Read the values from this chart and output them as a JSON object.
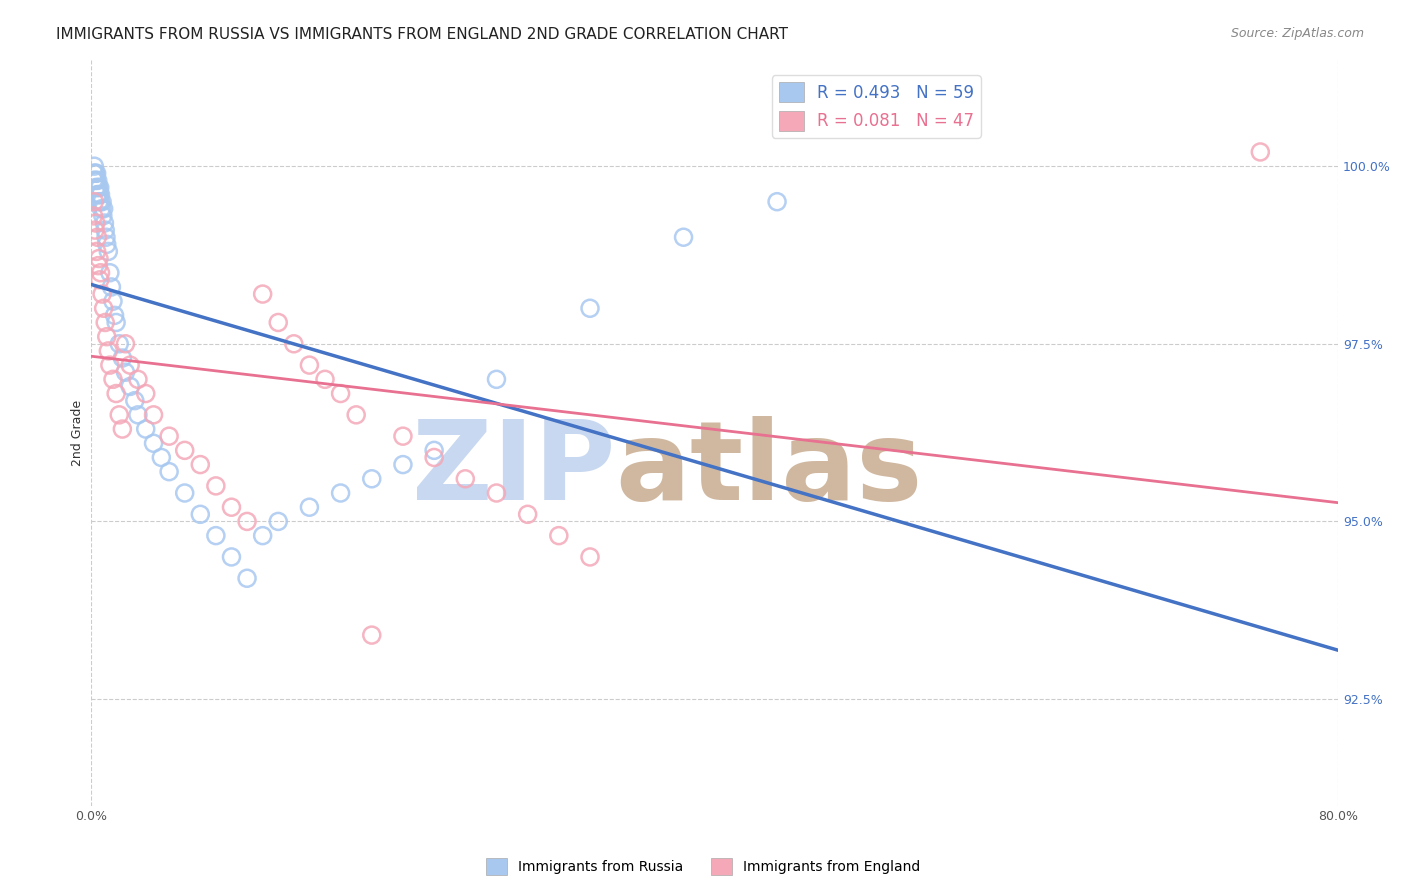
{
  "title": "IMMIGRANTS FROM RUSSIA VS IMMIGRANTS FROM ENGLAND 2ND GRADE CORRELATION CHART",
  "source": "Source: ZipAtlas.com",
  "ylabel": "2nd Grade",
  "xlim": [
    0.0,
    80.0
  ],
  "ylim": [
    91.0,
    101.5
  ],
  "yticks": [
    92.5,
    95.0,
    97.5,
    100.0
  ],
  "xticks_vals": [
    0.0,
    80.0
  ],
  "russia_R": 0.493,
  "russia_N": 59,
  "england_R": 0.081,
  "england_N": 47,
  "russia_color": "#A8C8F0",
  "england_color": "#F4A8B8",
  "russia_line_color": "#4472C4",
  "england_line_color": "#E87090",
  "russia_x": [
    0.15,
    0.18,
    0.2,
    0.22,
    0.25,
    0.28,
    0.3,
    0.32,
    0.35,
    0.38,
    0.4,
    0.42,
    0.45,
    0.48,
    0.5,
    0.52,
    0.55,
    0.58,
    0.6,
    0.65,
    0.7,
    0.75,
    0.8,
    0.85,
    0.9,
    0.95,
    1.0,
    1.1,
    1.2,
    1.3,
    1.4,
    1.5,
    1.6,
    1.8,
    2.0,
    2.2,
    2.5,
    2.8,
    3.0,
    3.5,
    4.0,
    4.5,
    5.0,
    6.0,
    7.0,
    8.0,
    9.0,
    10.0,
    11.0,
    12.0,
    14.0,
    16.0,
    18.0,
    20.0,
    22.0,
    26.0,
    32.0,
    38.0,
    44.0
  ],
  "russia_y": [
    99.8,
    99.9,
    100.0,
    99.9,
    99.8,
    99.9,
    99.7,
    99.8,
    99.9,
    99.6,
    99.7,
    99.8,
    99.6,
    99.7,
    99.5,
    99.6,
    99.7,
    99.5,
    99.6,
    99.4,
    99.5,
    99.3,
    99.4,
    99.2,
    99.1,
    99.0,
    98.9,
    98.8,
    98.5,
    98.3,
    98.1,
    97.9,
    97.8,
    97.5,
    97.3,
    97.1,
    96.9,
    96.7,
    96.5,
    96.3,
    96.1,
    95.9,
    95.7,
    95.4,
    95.1,
    94.8,
    94.5,
    94.2,
    94.8,
    95.0,
    95.2,
    95.4,
    95.6,
    95.8,
    96.0,
    97.0,
    98.0,
    99.0,
    99.5
  ],
  "england_x": [
    0.15,
    0.2,
    0.25,
    0.3,
    0.35,
    0.4,
    0.45,
    0.5,
    0.55,
    0.6,
    0.7,
    0.8,
    0.9,
    1.0,
    1.1,
    1.2,
    1.4,
    1.6,
    1.8,
    2.0,
    2.2,
    2.5,
    3.0,
    3.5,
    4.0,
    5.0,
    6.0,
    7.0,
    8.0,
    9.0,
    10.0,
    11.0,
    12.0,
    13.0,
    14.0,
    15.0,
    16.0,
    17.0,
    18.0,
    20.0,
    22.0,
    24.0,
    26.0,
    28.0,
    30.0,
    32.0,
    75.0
  ],
  "england_y": [
    99.3,
    99.5,
    99.1,
    99.2,
    98.8,
    99.0,
    98.6,
    98.7,
    98.4,
    98.5,
    98.2,
    98.0,
    97.8,
    97.6,
    97.4,
    97.2,
    97.0,
    96.8,
    96.5,
    96.3,
    97.5,
    97.2,
    97.0,
    96.8,
    96.5,
    96.2,
    96.0,
    95.8,
    95.5,
    95.2,
    95.0,
    98.2,
    97.8,
    97.5,
    97.2,
    97.0,
    96.8,
    96.5,
    93.4,
    96.2,
    95.9,
    95.6,
    95.4,
    95.1,
    94.8,
    94.5,
    100.2
  ],
  "watermark_zip": "ZIP",
  "watermark_atlas": "atlas",
  "watermark_color_zip": "#C8D8F0",
  "watermark_color_atlas": "#D0B8A0",
  "background_color": "#FFFFFF",
  "title_fontsize": 11,
  "axis_label_fontsize": 9,
  "tick_fontsize": 9,
  "legend_fontsize": 12
}
